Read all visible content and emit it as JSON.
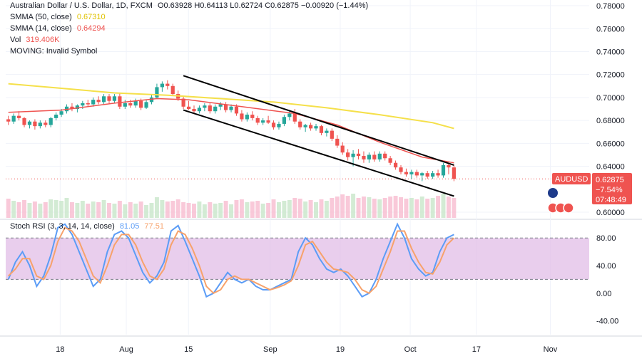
{
  "legend": {
    "title": "Australian Dollar / U.S. Dollar, 1D, FXCM",
    "ohlc": "O0.63928 H0.64113 L0.62724 C0.62875 −0.00920 (−1.44%)",
    "sma50_label": "SMMA (50, close)",
    "sma50_value": "0.67310",
    "sma14_label": "SMMA (14, close)",
    "sma14_value": "0.64294",
    "vol_label": "Vol",
    "vol_value": "319.406K",
    "moving_label": "MOVING: Invalid Symbol"
  },
  "price_tag": {
    "symbol": "AUDUSD",
    "price": "0.62875",
    "change": "−7.54%",
    "countdown": "07:48:49"
  },
  "rsi_legend": {
    "label": "Stoch RSI (3, 3, 14, 14, close)",
    "k_value": "81.05",
    "d_value": "77.51"
  },
  "colors": {
    "up": "#26a69a",
    "down": "#ef5350",
    "sma50": "#f5e04a",
    "sma14": "#ef5350",
    "channel": "#000000",
    "k_line": "#5b9cf6",
    "d_line": "#f7a26b",
    "rsi_band": "#e1bee7",
    "tag_bg": "#ef5350"
  },
  "chart_data": [
    {
      "type": "candlestick",
      "y_ticks": [
        "0.78000",
        "0.76000",
        "0.74000",
        "0.72000",
        "0.70000",
        "0.68000",
        "0.66000",
        "0.64000",
        "0.60000"
      ],
      "x_ticks": [
        "18",
        "Aug",
        "15",
        "Sep",
        "19",
        "Oct",
        "17",
        "Nov"
      ],
      "ylim": [
        0.595,
        0.785
      ],
      "candles": [
        {
          "o": 0.681,
          "h": 0.684,
          "l": 0.676,
          "c": 0.679
        },
        {
          "o": 0.679,
          "h": 0.686,
          "l": 0.677,
          "c": 0.684
        },
        {
          "o": 0.684,
          "h": 0.688,
          "l": 0.68,
          "c": 0.682
        },
        {
          "o": 0.682,
          "h": 0.683,
          "l": 0.674,
          "c": 0.676
        },
        {
          "o": 0.676,
          "h": 0.68,
          "l": 0.673,
          "c": 0.679
        },
        {
          "o": 0.679,
          "h": 0.681,
          "l": 0.672,
          "c": 0.675
        },
        {
          "o": 0.675,
          "h": 0.68,
          "l": 0.673,
          "c": 0.678
        },
        {
          "o": 0.678,
          "h": 0.68,
          "l": 0.674,
          "c": 0.676
        },
        {
          "o": 0.676,
          "h": 0.683,
          "l": 0.674,
          "c": 0.682
        },
        {
          "o": 0.682,
          "h": 0.687,
          "l": 0.68,
          "c": 0.685
        },
        {
          "o": 0.685,
          "h": 0.69,
          "l": 0.683,
          "c": 0.688
        },
        {
          "o": 0.688,
          "h": 0.694,
          "l": 0.686,
          "c": 0.692
        },
        {
          "o": 0.692,
          "h": 0.695,
          "l": 0.688,
          "c": 0.69
        },
        {
          "o": 0.69,
          "h": 0.694,
          "l": 0.687,
          "c": 0.693
        },
        {
          "o": 0.693,
          "h": 0.697,
          "l": 0.69,
          "c": 0.695
        },
        {
          "o": 0.695,
          "h": 0.698,
          "l": 0.692,
          "c": 0.694
        },
        {
          "o": 0.694,
          "h": 0.7,
          "l": 0.692,
          "c": 0.698
        },
        {
          "o": 0.698,
          "h": 0.701,
          "l": 0.694,
          "c": 0.696
        },
        {
          "o": 0.696,
          "h": 0.703,
          "l": 0.694,
          "c": 0.701
        },
        {
          "o": 0.701,
          "h": 0.703,
          "l": 0.695,
          "c": 0.697
        },
        {
          "o": 0.697,
          "h": 0.703,
          "l": 0.695,
          "c": 0.701
        },
        {
          "o": 0.701,
          "h": 0.704,
          "l": 0.69,
          "c": 0.692
        },
        {
          "o": 0.692,
          "h": 0.698,
          "l": 0.69,
          "c": 0.695
        },
        {
          "o": 0.695,
          "h": 0.698,
          "l": 0.691,
          "c": 0.693
        },
        {
          "o": 0.693,
          "h": 0.699,
          "l": 0.691,
          "c": 0.697
        },
        {
          "o": 0.697,
          "h": 0.699,
          "l": 0.689,
          "c": 0.691
        },
        {
          "o": 0.691,
          "h": 0.698,
          "l": 0.69,
          "c": 0.696
        },
        {
          "o": 0.696,
          "h": 0.703,
          "l": 0.694,
          "c": 0.7
        },
        {
          "o": 0.7,
          "h": 0.712,
          "l": 0.699,
          "c": 0.709
        },
        {
          "o": 0.709,
          "h": 0.714,
          "l": 0.705,
          "c": 0.712
        },
        {
          "o": 0.712,
          "h": 0.715,
          "l": 0.707,
          "c": 0.71
        },
        {
          "o": 0.71,
          "h": 0.712,
          "l": 0.702,
          "c": 0.703
        },
        {
          "o": 0.703,
          "h": 0.706,
          "l": 0.697,
          "c": 0.699
        },
        {
          "o": 0.699,
          "h": 0.701,
          "l": 0.69,
          "c": 0.692
        },
        {
          "o": 0.692,
          "h": 0.697,
          "l": 0.689,
          "c": 0.69
        },
        {
          "o": 0.69,
          "h": 0.693,
          "l": 0.686,
          "c": 0.688
        },
        {
          "o": 0.688,
          "h": 0.693,
          "l": 0.686,
          "c": 0.691
        },
        {
          "o": 0.691,
          "h": 0.695,
          "l": 0.688,
          "c": 0.693
        },
        {
          "o": 0.693,
          "h": 0.695,
          "l": 0.686,
          "c": 0.688
        },
        {
          "o": 0.688,
          "h": 0.694,
          "l": 0.686,
          "c": 0.692
        },
        {
          "o": 0.692,
          "h": 0.696,
          "l": 0.689,
          "c": 0.694
        },
        {
          "o": 0.694,
          "h": 0.696,
          "l": 0.687,
          "c": 0.689
        },
        {
          "o": 0.689,
          "h": 0.694,
          "l": 0.687,
          "c": 0.692
        },
        {
          "o": 0.692,
          "h": 0.694,
          "l": 0.684,
          "c": 0.686
        },
        {
          "o": 0.686,
          "h": 0.689,
          "l": 0.679,
          "c": 0.681
        },
        {
          "o": 0.681,
          "h": 0.687,
          "l": 0.679,
          "c": 0.685
        },
        {
          "o": 0.685,
          "h": 0.688,
          "l": 0.68,
          "c": 0.682
        },
        {
          "o": 0.682,
          "h": 0.684,
          "l": 0.676,
          "c": 0.678
        },
        {
          "o": 0.678,
          "h": 0.682,
          "l": 0.676,
          "c": 0.68
        },
        {
          "o": 0.68,
          "h": 0.684,
          "l": 0.677,
          "c": 0.678
        },
        {
          "o": 0.678,
          "h": 0.68,
          "l": 0.672,
          "c": 0.674
        },
        {
          "o": 0.674,
          "h": 0.679,
          "l": 0.672,
          "c": 0.677
        },
        {
          "o": 0.677,
          "h": 0.685,
          "l": 0.675,
          "c": 0.683
        },
        {
          "o": 0.683,
          "h": 0.688,
          "l": 0.68,
          "c": 0.686
        },
        {
          "o": 0.686,
          "h": 0.69,
          "l": 0.677,
          "c": 0.679
        },
        {
          "o": 0.679,
          "h": 0.681,
          "l": 0.672,
          "c": 0.674
        },
        {
          "o": 0.674,
          "h": 0.677,
          "l": 0.67,
          "c": 0.676
        },
        {
          "o": 0.676,
          "h": 0.678,
          "l": 0.671,
          "c": 0.673
        },
        {
          "o": 0.673,
          "h": 0.677,
          "l": 0.671,
          "c": 0.675
        },
        {
          "o": 0.675,
          "h": 0.676,
          "l": 0.667,
          "c": 0.669
        },
        {
          "o": 0.669,
          "h": 0.673,
          "l": 0.666,
          "c": 0.671
        },
        {
          "o": 0.671,
          "h": 0.673,
          "l": 0.662,
          "c": 0.664
        },
        {
          "o": 0.664,
          "h": 0.667,
          "l": 0.656,
          "c": 0.658
        },
        {
          "o": 0.658,
          "h": 0.661,
          "l": 0.65,
          "c": 0.652
        },
        {
          "o": 0.652,
          "h": 0.655,
          "l": 0.645,
          "c": 0.648
        },
        {
          "o": 0.648,
          "h": 0.654,
          "l": 0.64,
          "c": 0.651
        },
        {
          "o": 0.651,
          "h": 0.655,
          "l": 0.646,
          "c": 0.649
        },
        {
          "o": 0.649,
          "h": 0.653,
          "l": 0.643,
          "c": 0.646
        },
        {
          "o": 0.646,
          "h": 0.652,
          "l": 0.643,
          "c": 0.65
        },
        {
          "o": 0.65,
          "h": 0.653,
          "l": 0.644,
          "c": 0.646
        },
        {
          "o": 0.646,
          "h": 0.653,
          "l": 0.644,
          "c": 0.651
        },
        {
          "o": 0.651,
          "h": 0.653,
          "l": 0.645,
          "c": 0.647
        },
        {
          "o": 0.647,
          "h": 0.649,
          "l": 0.641,
          "c": 0.643
        },
        {
          "o": 0.643,
          "h": 0.645,
          "l": 0.637,
          "c": 0.639
        },
        {
          "o": 0.639,
          "h": 0.641,
          "l": 0.633,
          "c": 0.635
        },
        {
          "o": 0.635,
          "h": 0.638,
          "l": 0.631,
          "c": 0.633
        },
        {
          "o": 0.633,
          "h": 0.637,
          "l": 0.629,
          "c": 0.635
        },
        {
          "o": 0.635,
          "h": 0.637,
          "l": 0.63,
          "c": 0.632
        },
        {
          "o": 0.632,
          "h": 0.635,
          "l": 0.627,
          "c": 0.634
        },
        {
          "o": 0.634,
          "h": 0.636,
          "l": 0.629,
          "c": 0.631
        },
        {
          "o": 0.631,
          "h": 0.636,
          "l": 0.629,
          "c": 0.634
        },
        {
          "o": 0.634,
          "h": 0.637,
          "l": 0.63,
          "c": 0.632
        },
        {
          "o": 0.632,
          "h": 0.643,
          "l": 0.63,
          "c": 0.641
        },
        {
          "o": 0.641,
          "h": 0.643,
          "l": 0.633,
          "c": 0.639
        },
        {
          "o": 0.639,
          "h": 0.641,
          "l": 0.627,
          "c": 0.629
        }
      ],
      "volume": [
        0.27,
        0.24,
        0.22,
        0.25,
        0.21,
        0.23,
        0.2,
        0.22,
        0.26,
        0.25,
        0.24,
        0.28,
        0.22,
        0.21,
        0.24,
        0.2,
        0.23,
        0.22,
        0.25,
        0.21,
        0.2,
        0.24,
        0.19,
        0.22,
        0.2,
        0.23,
        0.18,
        0.21,
        0.29,
        0.25,
        0.23,
        0.24,
        0.26,
        0.22,
        0.21,
        0.2,
        0.23,
        0.19,
        0.22,
        0.2,
        0.21,
        0.24,
        0.19,
        0.25,
        0.26,
        0.22,
        0.23,
        0.24,
        0.2,
        0.21,
        0.26,
        0.22,
        0.24,
        0.25,
        0.28,
        0.27,
        0.23,
        0.25,
        0.22,
        0.26,
        0.24,
        0.28,
        0.3,
        0.33,
        0.31,
        0.34,
        0.28,
        0.3,
        0.29,
        0.27,
        0.26,
        0.28,
        0.3,
        0.31,
        0.29,
        0.27,
        0.28,
        0.26,
        0.3,
        0.27,
        0.28,
        0.31,
        0.34,
        0.3,
        0.28
      ],
      "smma50": [
        [
          0,
          0.712
        ],
        [
          10,
          0.708
        ],
        [
          20,
          0.704
        ],
        [
          30,
          0.702
        ],
        [
          40,
          0.699
        ],
        [
          50,
          0.696
        ],
        [
          60,
          0.691
        ],
        [
          70,
          0.685
        ],
        [
          80,
          0.678
        ],
        [
          84,
          0.673
        ]
      ],
      "smma14": [
        [
          0,
          0.687
        ],
        [
          10,
          0.689
        ],
        [
          20,
          0.695
        ],
        [
          28,
          0.699
        ],
        [
          34,
          0.698
        ],
        [
          44,
          0.692
        ],
        [
          54,
          0.686
        ],
        [
          62,
          0.676
        ],
        [
          70,
          0.661
        ],
        [
          78,
          0.648
        ],
        [
          84,
          0.643
        ]
      ],
      "channel_upper": [
        [
          33,
          0.719
        ],
        [
          84,
          0.641
        ]
      ],
      "channel_lower": [
        [
          33,
          0.689
        ],
        [
          84,
          0.614
        ]
      ]
    },
    {
      "type": "line",
      "y_ticks": [
        "80.00",
        "40.00",
        "0.00",
        "-40.00"
      ],
      "ylim": [
        -60,
        105
      ],
      "band": [
        20,
        80
      ],
      "series": [
        {
          "name": "K",
          "values": [
            20,
            45,
            60,
            40,
            10,
            25,
            55,
            95,
            100,
            85,
            60,
            35,
            10,
            20,
            60,
            85,
            90,
            80,
            55,
            30,
            15,
            25,
            45,
            90,
            98,
            75,
            50,
            25,
            -5,
            0,
            15,
            30,
            20,
            15,
            20,
            10,
            5,
            5,
            10,
            15,
            20,
            60,
            80,
            70,
            50,
            35,
            30,
            35,
            25,
            10,
            -5,
            0,
            20,
            50,
            75,
            100,
            80,
            50,
            35,
            25,
            30,
            60,
            80,
            85
          ]
        },
        {
          "name": "D",
          "values": [
            25,
            35,
            50,
            50,
            25,
            20,
            40,
            75,
            95,
            90,
            75,
            50,
            25,
            15,
            40,
            70,
            85,
            85,
            70,
            45,
            25,
            20,
            35,
            70,
            90,
            85,
            65,
            40,
            10,
            0,
            5,
            20,
            25,
            20,
            20,
            15,
            10,
            5,
            8,
            12,
            18,
            40,
            70,
            75,
            60,
            45,
            35,
            33,
            30,
            20,
            5,
            0,
            10,
            35,
            60,
            90,
            90,
            65,
            45,
            30,
            28,
            45,
            70,
            80
          ]
        }
      ]
    }
  ]
}
